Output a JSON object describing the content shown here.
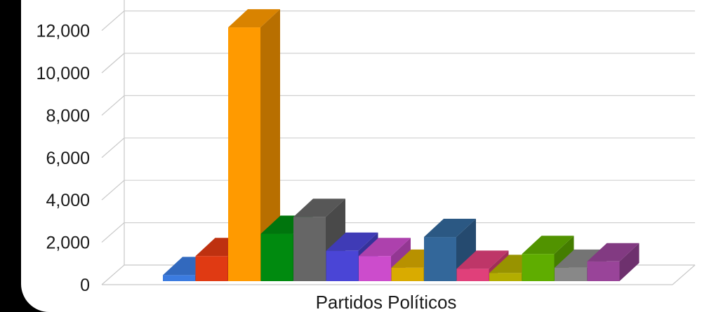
{
  "chart_data": {
    "type": "bar",
    "style": "3d-column",
    "xlabel": "Partidos Políticos",
    "ylabel": "",
    "ylim": [
      0,
      13000
    ],
    "yticks": [
      0,
      2000,
      4000,
      6000,
      8000,
      10000,
      12000
    ],
    "ytick_labels": [
      "0",
      "2,000",
      "4,000",
      "6,000",
      "8,000",
      "10,000",
      "12,000"
    ],
    "grid": true,
    "legend": "none",
    "series": [
      {
        "values": [
          450,
          1350,
          12150,
          2400,
          3200,
          1600,
          1350,
          800,
          2250,
          750,
          550,
          1450,
          800,
          1100
        ],
        "colors": [
          "#3b7be0",
          "#e03a13",
          "#ff9a00",
          "#008a0f",
          "#666666",
          "#4a45d6",
          "#cc4ccc",
          "#d9ab00",
          "#33679a",
          "#e0407a",
          "#b3ad00",
          "#5fad00",
          "#888888",
          "#994499"
        ]
      }
    ]
  }
}
